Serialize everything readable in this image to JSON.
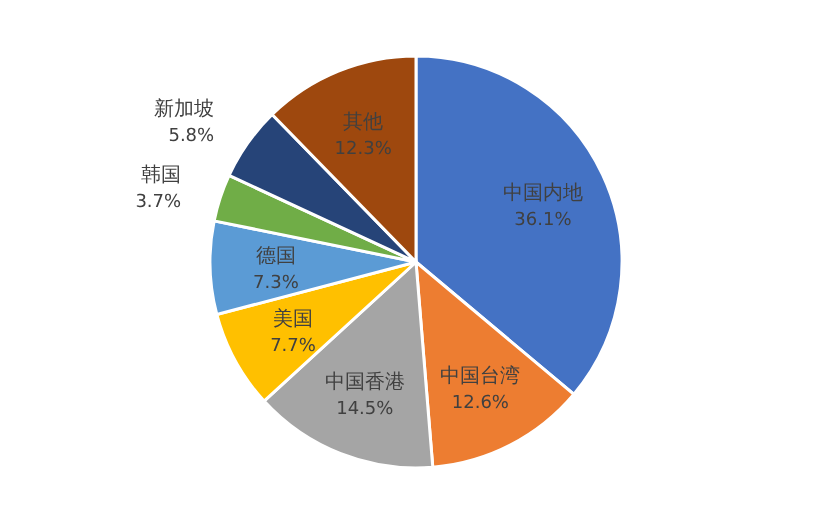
{
  "chart_data": {
    "type": "pie",
    "categories": [
      "中国内地",
      "中国台湾",
      "中国香港",
      "美国",
      "德国",
      "韩国",
      "新加坡",
      "其他"
    ],
    "values": [
      36.1,
      12.6,
      14.5,
      7.7,
      7.3,
      3.7,
      5.8,
      12.3
    ],
    "value_labels": [
      "36.1%",
      "12.6%",
      "14.5%",
      "7.7%",
      "7.3%",
      "3.7%",
      "5.8%",
      "12.3%"
    ],
    "colors": [
      "#4472c4",
      "#ed7d31",
      "#a5a5a5",
      "#ffc000",
      "#5b9bd5",
      "#70ad47",
      "#264478",
      "#9e480e"
    ]
  }
}
